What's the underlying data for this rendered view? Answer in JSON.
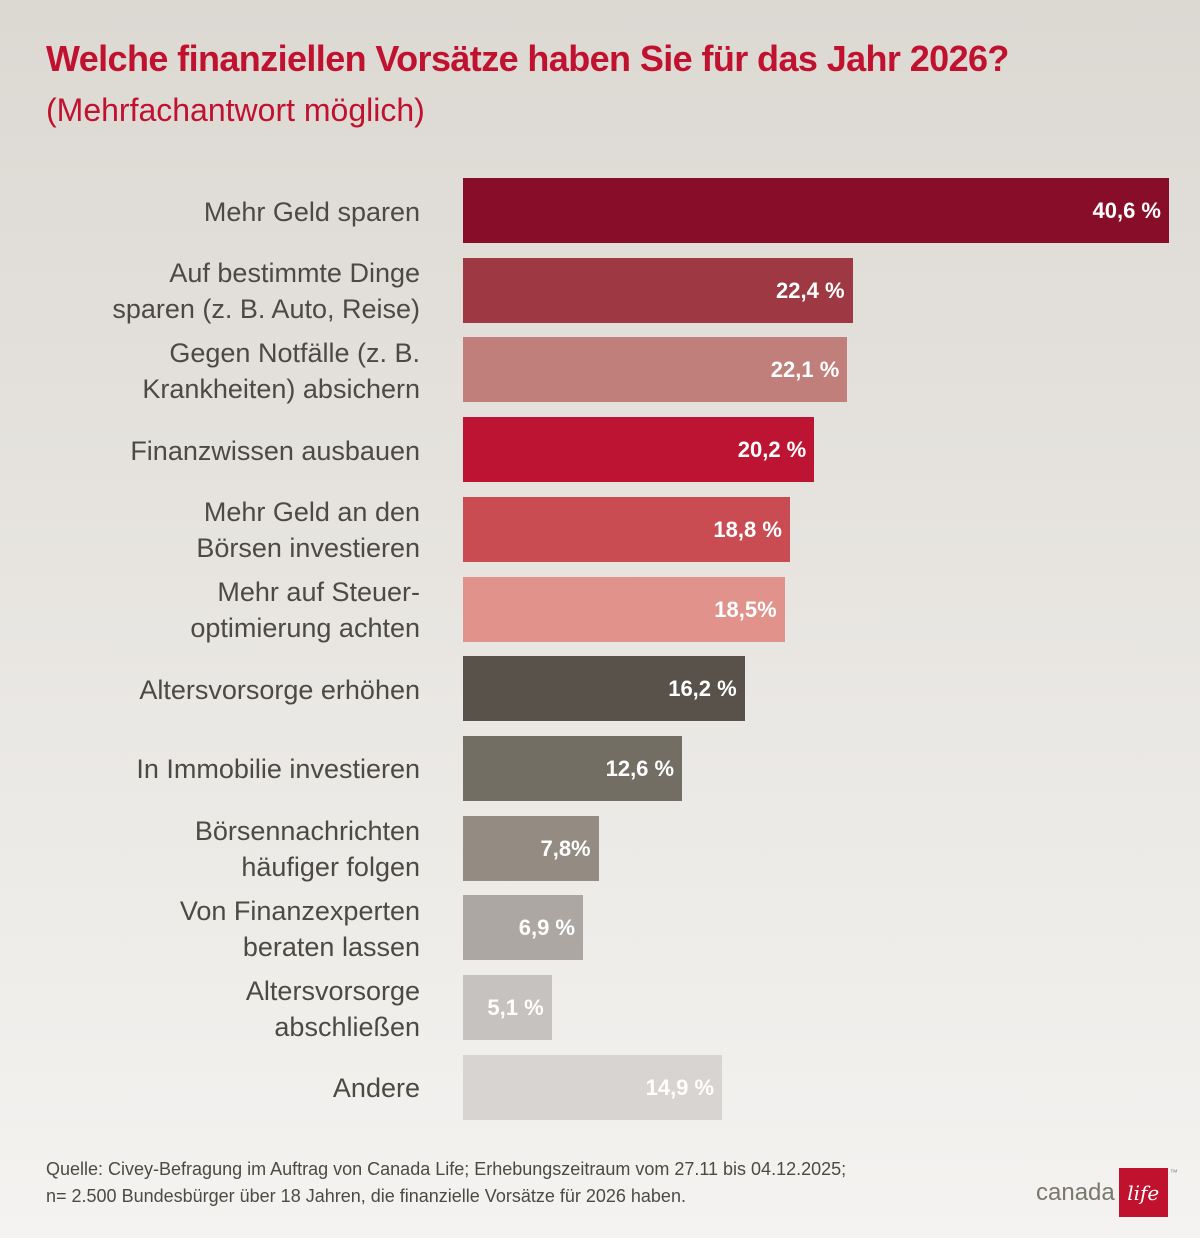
{
  "chart_data": {
    "type": "bar",
    "orientation": "horizontal",
    "title": "Welche finanziellen Vorsätze haben Sie für das Jahr 2026?",
    "subtitle": "(Mehrfachantwort möglich)",
    "categories": [
      "Mehr Geld sparen",
      "Auf bestimmte Dinge\nsparen (z. B. Auto, Reise)",
      "Gegen Notfälle (z. B.\nKrankheiten) absichern",
      "Finanzwissen ausbauen",
      "Mehr Geld an den\nBörsen investieren",
      "Mehr auf Steuer-\noptimierung achten",
      "Altersvorsorge erhöhen",
      "In Immobilie investieren",
      "Börsennachrichten\nhäufiger folgen",
      "Von Finanzexperten\nberaten lassen",
      "Altersvorsorge\nabschließen",
      "Andere"
    ],
    "values": [
      40.6,
      22.4,
      22.1,
      20.2,
      18.8,
      18.5,
      16.2,
      12.6,
      7.8,
      6.9,
      5.1,
      14.9
    ],
    "data_labels": [
      "40,6 %",
      "22,4 %",
      "22,1 %",
      "20,2 %",
      "18,8 %",
      "18,5%",
      "16,2 %",
      "12,6 %",
      "7,8%",
      "6,9 %",
      "5,1 %",
      "14,9 %"
    ],
    "colors": [
      "#880d28",
      "#9e3943",
      "#c17f7c",
      "#be1433",
      "#c94c53",
      "#e0928b",
      "#58524a",
      "#736e64",
      "#948c83",
      "#aca7a2",
      "#c6c2bf",
      "#d8d4d1"
    ],
    "xlim": [
      0,
      40.6
    ],
    "grid": false,
    "xlabel": "",
    "ylabel": ""
  },
  "footer": {
    "source_line1": "Quelle: Civey-Befragung im Auftrag von Canada Life; Erhebungszeitraum vom 27.11 bis 04.12.2025;",
    "source_line2": "n= 2.500 Bundesbürger über 18 Jahren, die finanzielle Vorsätze für 2026 haben."
  },
  "logo": {
    "text": "canada",
    "box": "life",
    "tm": "™"
  }
}
